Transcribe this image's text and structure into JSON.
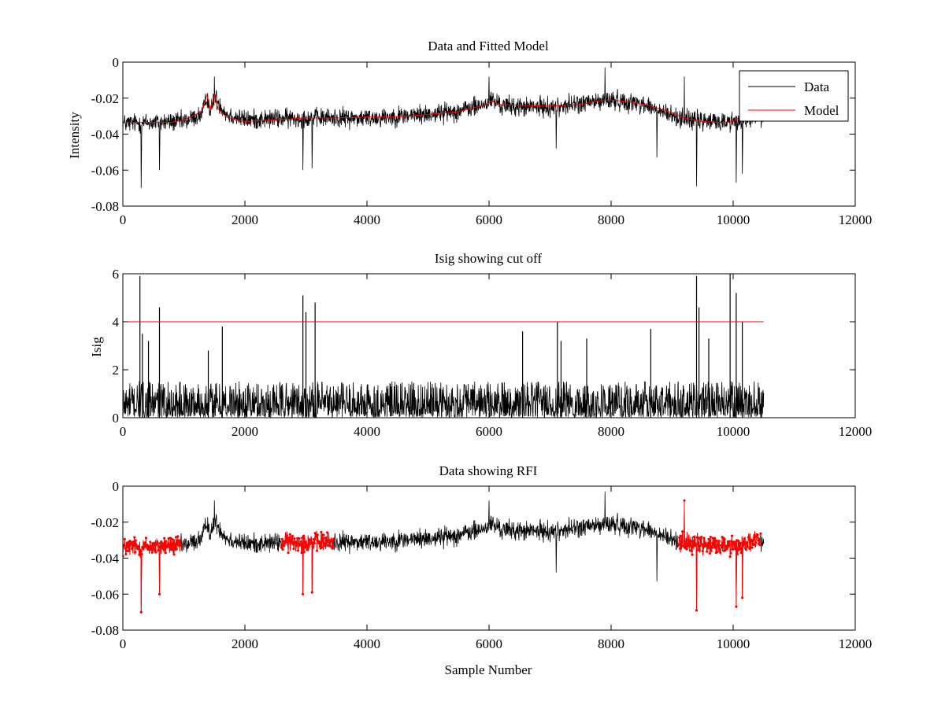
{
  "figure": {
    "background": "#ffffff",
    "data_color": "#000000",
    "model_color": "#ff0000",
    "rfi_color": "#ff0000",
    "cutoff_color": "#ff0000"
  },
  "chart_data": [
    {
      "type": "line",
      "title": "Data and Fitted Model",
      "xlabel": "",
      "ylabel": "Intensity",
      "xlim": [
        0,
        12000
      ],
      "ylim": [
        -0.08,
        0
      ],
      "xticks": [
        0,
        2000,
        4000,
        6000,
        8000,
        10000,
        12000
      ],
      "xtick_labels": [
        "0",
        "2000",
        "4000",
        "6000",
        "8000",
        "10000",
        "12000"
      ],
      "yticks": [
        -0.08,
        -0.06,
        -0.04,
        -0.02,
        0
      ],
      "ytick_labels": [
        "-0.08",
        "-0.06",
        "-0.04",
        "-0.02",
        "0"
      ],
      "legend": {
        "placement": "top-right",
        "entries": [
          "Data",
          "Model"
        ]
      },
      "series": [
        {
          "name": "Data",
          "style": "noise",
          "color": "#000000",
          "x_range": [
            0,
            10500
          ],
          "baseline": {
            "x": [
              0,
              1000,
              1300,
              1380,
              1440,
              1500,
              1700,
              2000,
              3000,
              4000,
              5000,
              5500,
              5900,
              6050,
              6200,
              6500,
              7000,
              7500,
              8000,
              8500,
              9000,
              9500,
              10000,
              10500
            ],
            "y": [
              -0.034,
              -0.033,
              -0.029,
              -0.019,
              -0.028,
              -0.019,
              -0.029,
              -0.032,
              -0.031,
              -0.031,
              -0.029,
              -0.027,
              -0.024,
              -0.021,
              -0.024,
              -0.025,
              -0.025,
              -0.023,
              -0.021,
              -0.023,
              -0.03,
              -0.033,
              -0.033,
              -0.03
            ]
          },
          "spread": 0.008,
          "dips": [
            {
              "x": 300,
              "y": -0.07
            },
            {
              "x": 600,
              "y": -0.06
            },
            {
              "x": 2950,
              "y": -0.06
            },
            {
              "x": 3100,
              "y": -0.059
            },
            {
              "x": 7100,
              "y": -0.048
            },
            {
              "x": 8750,
              "y": -0.053
            },
            {
              "x": 9400,
              "y": -0.069
            },
            {
              "x": 10050,
              "y": -0.067
            },
            {
              "x": 10150,
              "y": -0.062
            }
          ],
          "peaks": [
            {
              "x": 1500,
              "y": -0.008
            },
            {
              "x": 6000,
              "y": -0.008
            },
            {
              "x": 7900,
              "y": -0.003
            },
            {
              "x": 9200,
              "y": -0.008
            }
          ]
        },
        {
          "name": "Model",
          "style": "line",
          "color": "#ff0000",
          "x": [
            0,
            800,
            1000,
            1200,
            1300,
            1380,
            1440,
            1500,
            1560,
            1700,
            1900,
            2000,
            2500,
            3000,
            3500,
            4000,
            4500,
            5000,
            5500,
            5800,
            5950,
            6050,
            6150,
            6500,
            7000,
            7500,
            7800,
            8000,
            8300,
            8600,
            8900,
            9200,
            9500,
            9800,
            10000,
            10100,
            10200
          ],
          "y": [
            -0.0335,
            -0.0335,
            -0.032,
            -0.029,
            -0.027,
            -0.018,
            -0.027,
            -0.018,
            -0.026,
            -0.0305,
            -0.0325,
            -0.033,
            -0.032,
            -0.031,
            -0.031,
            -0.0305,
            -0.0305,
            -0.029,
            -0.0275,
            -0.025,
            -0.0235,
            -0.0215,
            -0.0235,
            -0.024,
            -0.0245,
            -0.0235,
            -0.0215,
            -0.021,
            -0.022,
            -0.024,
            -0.027,
            -0.031,
            -0.033,
            -0.0335,
            -0.033,
            -0.0305,
            -0.0305
          ]
        }
      ]
    },
    {
      "type": "line",
      "title": "Isig showing cut off",
      "xlabel": "",
      "ylabel": "Isig",
      "xlim": [
        0,
        12000
      ],
      "ylim": [
        0,
        6
      ],
      "xticks": [
        0,
        2000,
        4000,
        6000,
        8000,
        10000,
        12000
      ],
      "xtick_labels": [
        "0",
        "2000",
        "4000",
        "6000",
        "8000",
        "10000",
        "12000"
      ],
      "yticks": [
        0,
        2,
        4,
        6
      ],
      "ytick_labels": [
        "0",
        "2",
        "4",
        "6"
      ],
      "series": [
        {
          "name": "Isig",
          "style": "spikes",
          "color": "#000000",
          "x_range": [
            0,
            10500
          ],
          "typical_max": 1.5,
          "spikes": [
            {
              "x": 280,
              "y": 5.9
            },
            {
              "x": 320,
              "y": 3.5
            },
            {
              "x": 420,
              "y": 3.2
            },
            {
              "x": 600,
              "y": 4.6
            },
            {
              "x": 1400,
              "y": 2.8
            },
            {
              "x": 1630,
              "y": 3.8
            },
            {
              "x": 2950,
              "y": 5.1
            },
            {
              "x": 3000,
              "y": 4.4
            },
            {
              "x": 3150,
              "y": 4.8
            },
            {
              "x": 6550,
              "y": 3.6
            },
            {
              "x": 7120,
              "y": 4.0
            },
            {
              "x": 7180,
              "y": 3.2
            },
            {
              "x": 7600,
              "y": 3.3
            },
            {
              "x": 8650,
              "y": 3.7
            },
            {
              "x": 9400,
              "y": 5.9
            },
            {
              "x": 9440,
              "y": 4.6
            },
            {
              "x": 9600,
              "y": 3.3
            },
            {
              "x": 9950,
              "y": 6.0
            },
            {
              "x": 10050,
              "y": 5.2
            },
            {
              "x": 10150,
              "y": 4.0
            }
          ]
        },
        {
          "name": "Cut off",
          "style": "line",
          "color": "#ff0000",
          "x": [
            0,
            10500
          ],
          "y": [
            4,
            4
          ]
        }
      ]
    },
    {
      "type": "line",
      "title": "Data showing RFI",
      "xlabel": "Sample Number",
      "ylabel": "",
      "xlim": [
        0,
        12000
      ],
      "ylim": [
        -0.08,
        0
      ],
      "xticks": [
        0,
        2000,
        4000,
        6000,
        8000,
        10000,
        12000
      ],
      "xtick_labels": [
        "0",
        "2000",
        "4000",
        "6000",
        "8000",
        "10000",
        "12000"
      ],
      "yticks": [
        -0.08,
        -0.06,
        -0.04,
        -0.02,
        0
      ],
      "ytick_labels": [
        "-0.08",
        "-0.06",
        "-0.04",
        "-0.02",
        "0"
      ],
      "series": [
        {
          "name": "Data",
          "style": "noise-copy",
          "source": 0,
          "color": "#000000"
        },
        {
          "name": "RFI",
          "style": "markers",
          "color": "#ff0000",
          "ranges": [
            [
              0,
              950
            ],
            [
              2600,
              3450
            ],
            [
              9100,
              10450
            ]
          ]
        }
      ]
    }
  ]
}
